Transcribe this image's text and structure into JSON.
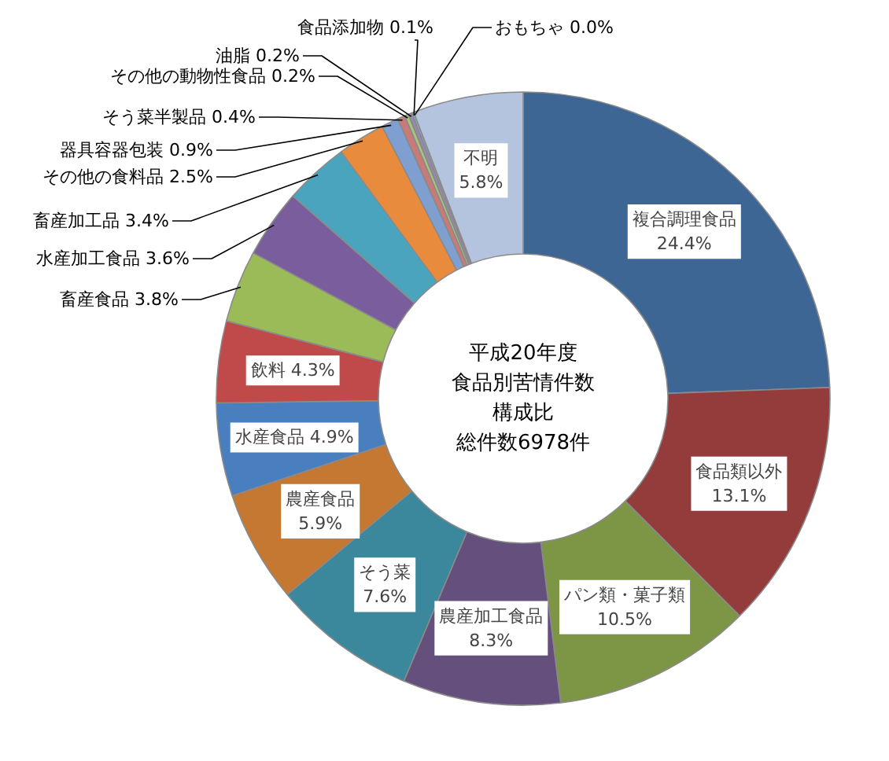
{
  "chart_data": {
    "type": "donut",
    "annotations": [
      "平成20年度",
      "食品別苦情件数",
      "構成比",
      "総件数6978件"
    ],
    "categories": [
      "複合調理食品",
      "食品類以外",
      "パン類・菓子類",
      "農産加工食品",
      "そう菜",
      "農産食品",
      "水産食品",
      "飲料",
      "畜産食品",
      "水産加工食品",
      "畜産加工品",
      "その他の食料品",
      "器具容器包装",
      "そう菜半製品",
      "その他の動物性食品",
      "油脂",
      "食品添加物",
      "おもちゃ",
      "不明"
    ],
    "values": [
      24.4,
      13.1,
      10.5,
      8.3,
      7.6,
      5.9,
      4.9,
      4.3,
      3.8,
      3.6,
      3.4,
      2.5,
      0.9,
      0.4,
      0.2,
      0.2,
      0.1,
      0.0,
      5.8
    ],
    "value_labels": [
      "24.4%",
      "13.1%",
      "10.5%",
      "8.3%",
      "7.6%",
      "5.9%",
      "4.9%",
      "4.3%",
      "3.8%",
      "3.6%",
      "3.4%",
      "2.5%",
      "0.9%",
      "0.4%",
      "0.2%",
      "0.2%",
      "0.1%",
      "0.0%",
      "5.8%"
    ],
    "colors": [
      "#3e6694",
      "#943c3c",
      "#7d9645",
      "#644f7d",
      "#3b879b",
      "#c47832",
      "#4a7fbf",
      "#c04a4a",
      "#9bbb59",
      "#7a5d9c",
      "#4aa4be",
      "#e98b3c",
      "#7f9fd0",
      "#c87a78",
      "#a9c57c",
      "#9688b0",
      "#7fc1d5",
      "#f3a86a",
      "#b4c3de"
    ]
  }
}
